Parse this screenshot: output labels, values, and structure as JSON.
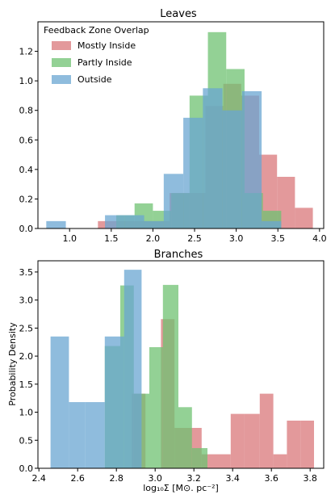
{
  "colors": {
    "red": "#d9777a",
    "green": "#6fc271",
    "blue": "#6aa6d2",
    "alpha": 0.75
  },
  "chart_data": [
    {
      "type": "bar",
      "subtype": "histogram",
      "title": "Leaves",
      "xlabel": "",
      "ylabel": "",
      "xlim": [
        0.62,
        4.05
      ],
      "ylim": [
        0,
        1.4
      ],
      "xticks": [
        1.0,
        1.5,
        2.0,
        2.5,
        3.0,
        3.5,
        4.0
      ],
      "xtick_labels": [
        "1.0",
        "1.5",
        "2.0",
        "2.5",
        "3.0",
        "3.5",
        "4.0"
      ],
      "yticks": [
        0.0,
        0.2,
        0.4,
        0.6,
        0.8,
        1.0,
        1.2
      ],
      "ytick_labels": [
        "0.0",
        "0.2",
        "0.4",
        "0.6",
        "0.8",
        "1.0",
        "1.2"
      ],
      "legend": {
        "title": "Feedback Zone Overlap",
        "position": "top-left",
        "entries": [
          "Mostly Inside",
          "Partly Inside",
          "Outside"
        ]
      },
      "series": [
        {
          "name": "Mostly Inside",
          "color_key": "red",
          "edges": [
            1.34,
            1.555,
            1.77,
            1.985,
            2.2,
            2.415,
            2.63,
            2.845,
            3.06,
            3.275,
            3.49,
            3.705,
            3.92
          ],
          "values": [
            0.05,
            0.05,
            0.05,
            0.05,
            0.24,
            0.24,
            0.83,
            0.98,
            0.9,
            0.5,
            0.35,
            0.14
          ]
        },
        {
          "name": "Partly Inside",
          "color_key": "green",
          "edges": [
            1.56,
            1.78,
            2.0,
            2.22,
            2.44,
            2.66,
            2.88,
            3.1,
            3.32,
            3.54
          ],
          "values": [
            0.09,
            0.17,
            0.12,
            0.24,
            0.9,
            1.33,
            1.08,
            0.24,
            0.12
          ]
        },
        {
          "name": "Outside",
          "color_key": "blue",
          "edges": [
            0.72,
            0.955,
            1.19,
            1.425,
            1.66,
            1.895,
            2.13,
            2.365,
            2.6,
            2.835,
            3.07,
            3.305,
            3.54
          ],
          "values": [
            0.05,
            0.0,
            0.0,
            0.09,
            0.09,
            0.05,
            0.37,
            0.75,
            0.95,
            0.8,
            0.93,
            0.05
          ]
        }
      ]
    },
    {
      "type": "bar",
      "subtype": "histogram",
      "title": "Branches",
      "xlabel": "log₁₀Σ  [M⊙. pc⁻²]",
      "ylabel": "Probability Density",
      "xlim": [
        2.395,
        3.87
      ],
      "ylim": [
        0,
        3.7
      ],
      "xticks": [
        2.4,
        2.6,
        2.8,
        3.0,
        3.2,
        3.4,
        3.6,
        3.8
      ],
      "xtick_labels": [
        "2.4",
        "2.6",
        "2.8",
        "3.0",
        "3.2",
        "3.4",
        "3.6",
        "3.8"
      ],
      "yticks": [
        0.0,
        0.5,
        1.0,
        1.5,
        2.0,
        2.5,
        3.0,
        3.5
      ],
      "ytick_labels": [
        "0.0",
        "0.5",
        "1.0",
        "1.5",
        "2.0",
        "2.5",
        "3.0",
        "3.5"
      ],
      "series": [
        {
          "name": "Mostly Inside",
          "color_key": "red",
          "edges": [
            2.88,
            2.95,
            3.03,
            3.1,
            3.17,
            3.24,
            3.32,
            3.39,
            3.46,
            3.54,
            3.61,
            3.68,
            3.75,
            3.82
          ],
          "values": [
            1.33,
            0.0,
            2.66,
            0.72,
            0.72,
            0.25,
            0.25,
            0.97,
            0.97,
            1.33,
            0.25,
            0.85,
            0.85
          ]
        },
        {
          "name": "Partly Inside",
          "color_key": "green",
          "edges": [
            2.74,
            2.82,
            2.89,
            2.97,
            3.04,
            3.12,
            3.19,
            3.27
          ],
          "values": [
            2.18,
            3.26,
            1.33,
            2.16,
            3.27,
            1.09,
            0.36
          ]
        },
        {
          "name": "Outside",
          "color_key": "blue",
          "edges": [
            2.46,
            2.555,
            2.64,
            2.74,
            2.84,
            2.93
          ],
          "values": [
            2.35,
            1.18,
            1.18,
            2.35,
            3.54
          ]
        }
      ]
    }
  ]
}
